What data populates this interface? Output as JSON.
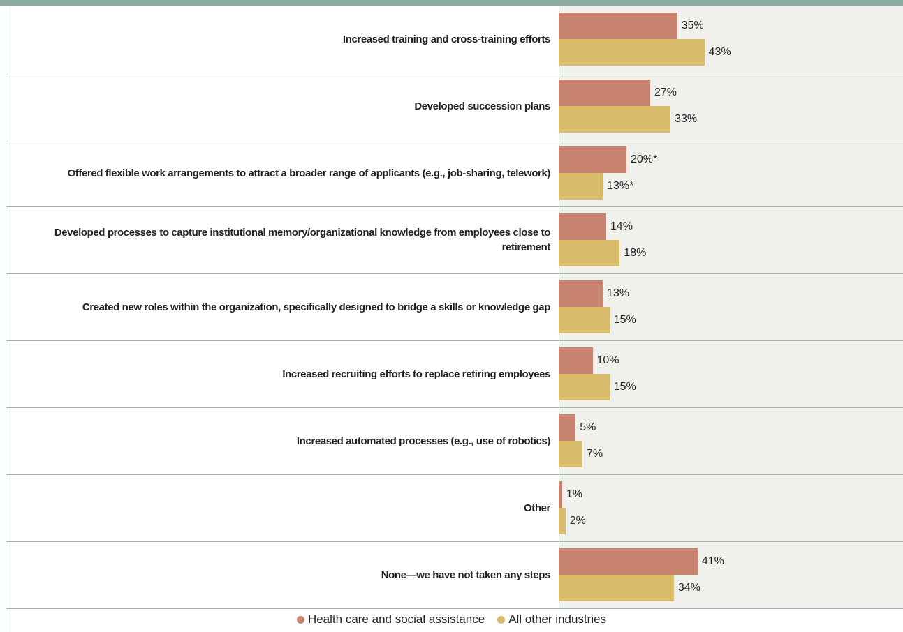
{
  "chart_data": {
    "type": "bar",
    "orientation": "horizontal",
    "categories": [
      "Increased training and cross-training efforts",
      "Developed succession plans",
      "Offered flexible work arrangements to attract a broader range of applicants (e.g., job-sharing, telework)",
      "Developed processes to capture institutional memory/organizational knowledge from employees close to retirement",
      "Created new roles within the organization, specifically designed to bridge a skills or knowledge gap",
      "Increased recruiting efforts to replace retiring employees",
      "Increased automated processes (e.g., use of robotics)",
      "Other",
      "None—we have not taken any steps"
    ],
    "series": [
      {
        "name": "Health care and social assistance",
        "color": "#c9846f",
        "values": [
          35,
          27,
          20,
          14,
          13,
          10,
          5,
          1,
          41
        ],
        "value_labels": [
          "35%",
          "27%",
          "20%*",
          "14%",
          "13%",
          "10%",
          "5%",
          "1%",
          "41%"
        ]
      },
      {
        "name": "All other industries",
        "color": "#d8bc6b",
        "values": [
          43,
          33,
          13,
          18,
          15,
          15,
          7,
          2,
          34
        ],
        "value_labels": [
          "43%",
          "33%",
          "13%*",
          "18%",
          "15%",
          "15%",
          "7%",
          "2%",
          "34%"
        ]
      }
    ]
  }
}
